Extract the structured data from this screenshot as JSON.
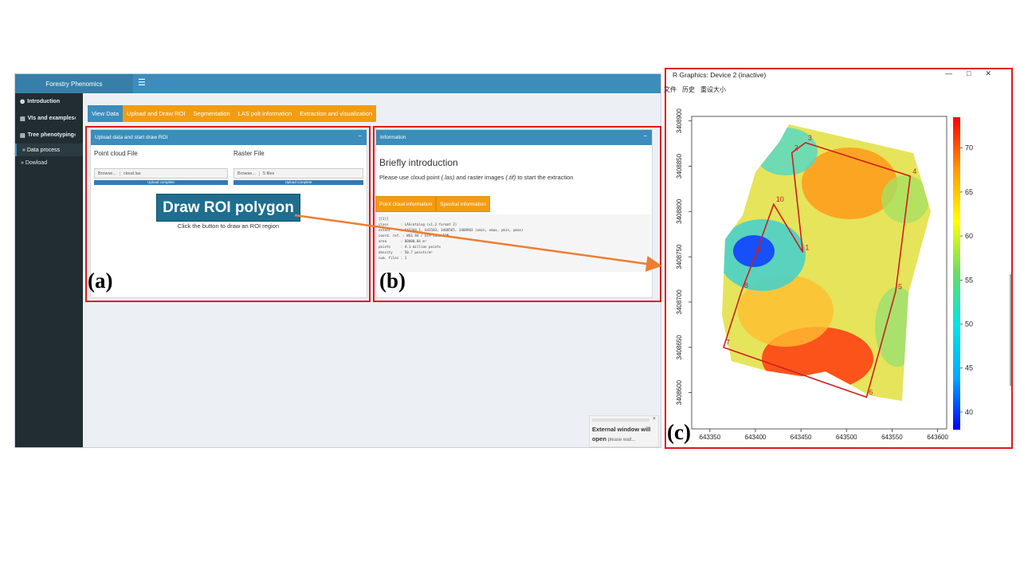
{
  "app": {
    "brand": "Forestry Phenomics",
    "menu_icon": "hamburger-icon",
    "sidebar": [
      {
        "label": "Introduction",
        "icon": "info-icon"
      },
      {
        "label": "VIs and examples",
        "icon": "table-icon"
      },
      {
        "label": "Tree phenotyping",
        "icon": "table-icon"
      }
    ],
    "sidebar_sub": [
      {
        "label": "Data process"
      },
      {
        "label": "Dowload"
      }
    ],
    "tabs": [
      "View Data",
      "Upload and Draw ROI",
      "Segmentation",
      "LAS polt information",
      "Extraction and visualization"
    ],
    "upload_box": {
      "title": "Upload data and start draw ROI",
      "point_label": "Point cloud File",
      "raster_label": "Raster File",
      "browse": "Browse...",
      "point_value": "cloud.las",
      "raster_value": "5 files",
      "progress": "Upload complete",
      "draw_button": "Draw ROI polygon",
      "draw_hint": "Click the button to draw an ROI region"
    },
    "info_box": {
      "title": "Information",
      "heading": "Briefly introduction",
      "desc_pre": "Please use cloud point ",
      "desc_las": "(.las)",
      "desc_mid": " and raster images ",
      "desc_tif": "(.tif)",
      "desc_post": " to start the extraction",
      "tabs": [
        "Point cloud information",
        "Spectral information"
      ],
      "console": "[[1]]\nclass      : LAScatalog (v1.2 format 2)\nextent     : 643344.1, 643583, 3408565, 3408903 (xmin, xmax, ymin, ymax)\ncoord. ref. : WGS 84 / UTM zone 50N\narea       : 80000.04 m²\npoints     : 4.1 million points\ndensity    : 50.7 points/m²\nnum. files : 1"
    },
    "toast": {
      "line1": "External window will",
      "line2_bold": "open",
      "line2_rest": " please wait..."
    }
  },
  "panels": {
    "a": "(a)",
    "b": "(b)",
    "c": "(c)"
  },
  "rwindow": {
    "title": "R Graphics: Device 2 (inactive)",
    "controls": "—□✕",
    "menu": [
      "文件",
      "历史",
      "重设大小"
    ]
  },
  "chart_data": {
    "type": "scatter",
    "title": "",
    "xlabel": "",
    "ylabel": "",
    "xlim": [
      643330,
      643610
    ],
    "ylim": [
      3408560,
      3408905
    ],
    "x_ticks": [
      643350,
      643400,
      643450,
      643500,
      643550,
      643600
    ],
    "y_ticks": [
      3408600,
      3408650,
      3408700,
      3408750,
      3408800,
      3408850,
      3408900
    ],
    "colorbar": {
      "min": 38,
      "max": 73.5,
      "ticks": [
        40,
        45,
        50,
        55,
        60,
        65,
        70
      ],
      "colors": [
        "#0000ff",
        "#00aaff",
        "#00e5e5",
        "#66dd66",
        "#ffff00",
        "#ff9900",
        "#ff0000"
      ]
    },
    "roi_polygon": [
      {
        "label": "1",
        "x": 643452,
        "y": 3408755
      },
      {
        "label": "2",
        "x": 643440,
        "y": 3408865
      },
      {
        "label": "3",
        "x": 643455,
        "y": 3408876
      },
      {
        "label": "4",
        "x": 643570,
        "y": 3408839
      },
      {
        "label": "5",
        "x": 643554,
        "y": 3408712
      },
      {
        "label": "6",
        "x": 643522,
        "y": 3408595
      },
      {
        "label": "7",
        "x": 643365,
        "y": 3408650
      },
      {
        "label": "8",
        "x": 643385,
        "y": 3408713
      },
      {
        "label": "9",
        "x": 643400,
        "y": 3408752
      },
      {
        "label": "10",
        "x": 643420,
        "y": 3408808
      }
    ],
    "roi_color": "#cc1f1f"
  }
}
